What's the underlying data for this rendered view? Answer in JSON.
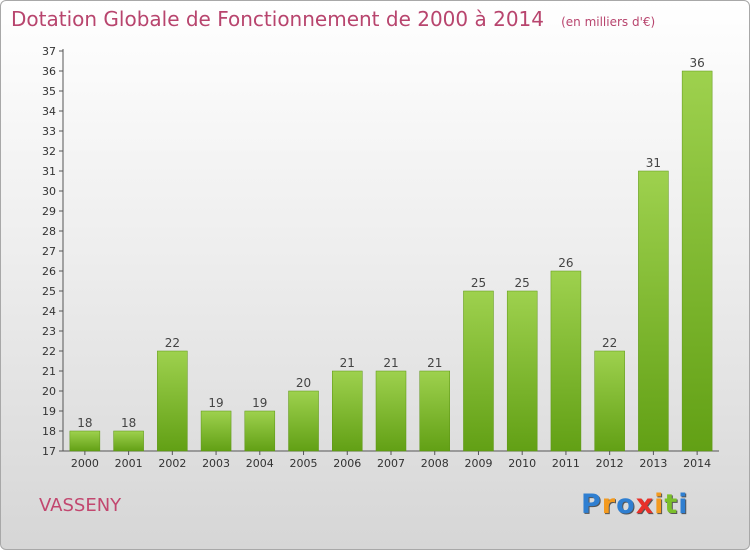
{
  "title": "Dotation Globale de Fonctionnement de 2000 à 2014",
  "unit_note": "(en milliers d'€)",
  "commune": "VASSENY",
  "logo": {
    "letters": [
      {
        "ch": "P",
        "color": "#2f7fd1"
      },
      {
        "ch": "r",
        "color": "#f39a1f"
      },
      {
        "ch": "o",
        "color": "#2f7fd1"
      },
      {
        "ch": "x",
        "color": "#e8312a"
      },
      {
        "ch": "i",
        "color": "#f39a1f"
      },
      {
        "ch": "t",
        "color": "#7bbf2b"
      },
      {
        "ch": "i",
        "color": "#2f7fd1"
      }
    ]
  },
  "chart_data": {
    "type": "bar",
    "categories": [
      "2000",
      "2001",
      "2002",
      "2003",
      "2004",
      "2005",
      "2006",
      "2007",
      "2008",
      "2009",
      "2010",
      "2011",
      "2012",
      "2013",
      "2014"
    ],
    "values": [
      18,
      18,
      22,
      19,
      19,
      20,
      21,
      21,
      21,
      25,
      25,
      26,
      22,
      31,
      36
    ],
    "ylim": [
      17,
      37
    ],
    "yticks": [
      17,
      18,
      19,
      20,
      21,
      22,
      23,
      24,
      25,
      26,
      27,
      28,
      29,
      30,
      31,
      32,
      33,
      34,
      35,
      36,
      37
    ],
    "grid": false,
    "bar_color_top": "#9ed14e",
    "bar_color_bottom": "#62a015"
  }
}
